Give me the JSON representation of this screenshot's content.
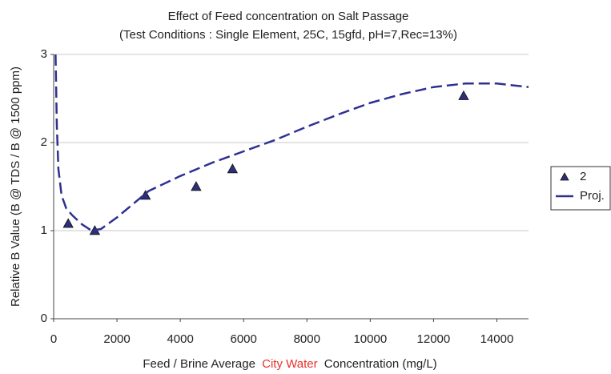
{
  "chart_data": {
    "type": "scatter",
    "title": "Effect of Feed concentration on  Salt Passage",
    "subtitle": "(Test Conditions : Single Element, 25C, 15gfd, pH=7,Rec=13%)",
    "x_label": [
      "Feed / Brine Average",
      "City Water",
      "Concentration (mg/L)"
    ],
    "x_label_highlight_color": "#e8302a",
    "y_label": "Relative B Value (B @ TDS / B @ 1500 ppm)",
    "xlim": [
      0,
      15000
    ],
    "ylim": [
      0,
      3
    ],
    "xticks": [
      0,
      2000,
      4000,
      6000,
      8000,
      10000,
      12000,
      14000
    ],
    "yticks": [
      0,
      1,
      2,
      3
    ],
    "grid": true,
    "legend": "right",
    "series": [
      {
        "name": "2",
        "type": "scatter",
        "color": "#2e2e7a",
        "x": [
          460,
          1300,
          2900,
          4500,
          5650,
          12950
        ],
        "values": [
          1.08,
          1.0,
          1.4,
          1.5,
          1.7,
          2.53
        ]
      },
      {
        "name": "Proj.",
        "type": "line",
        "color": "#2e3192",
        "x": [
          60,
          100,
          150,
          250,
          400,
          600,
          900,
          1200,
          1500,
          2000,
          2500,
          3000,
          4000,
          5000,
          6000,
          7000,
          8000,
          9000,
          10000,
          11000,
          12000,
          13000,
          14000,
          15000
        ],
        "values": [
          3.0,
          2.2,
          1.7,
          1.4,
          1.25,
          1.17,
          1.07,
          1.0,
          1.02,
          1.15,
          1.3,
          1.45,
          1.62,
          1.77,
          1.9,
          2.03,
          2.18,
          2.32,
          2.45,
          2.55,
          2.63,
          2.67,
          2.67,
          2.63
        ]
      }
    ]
  }
}
